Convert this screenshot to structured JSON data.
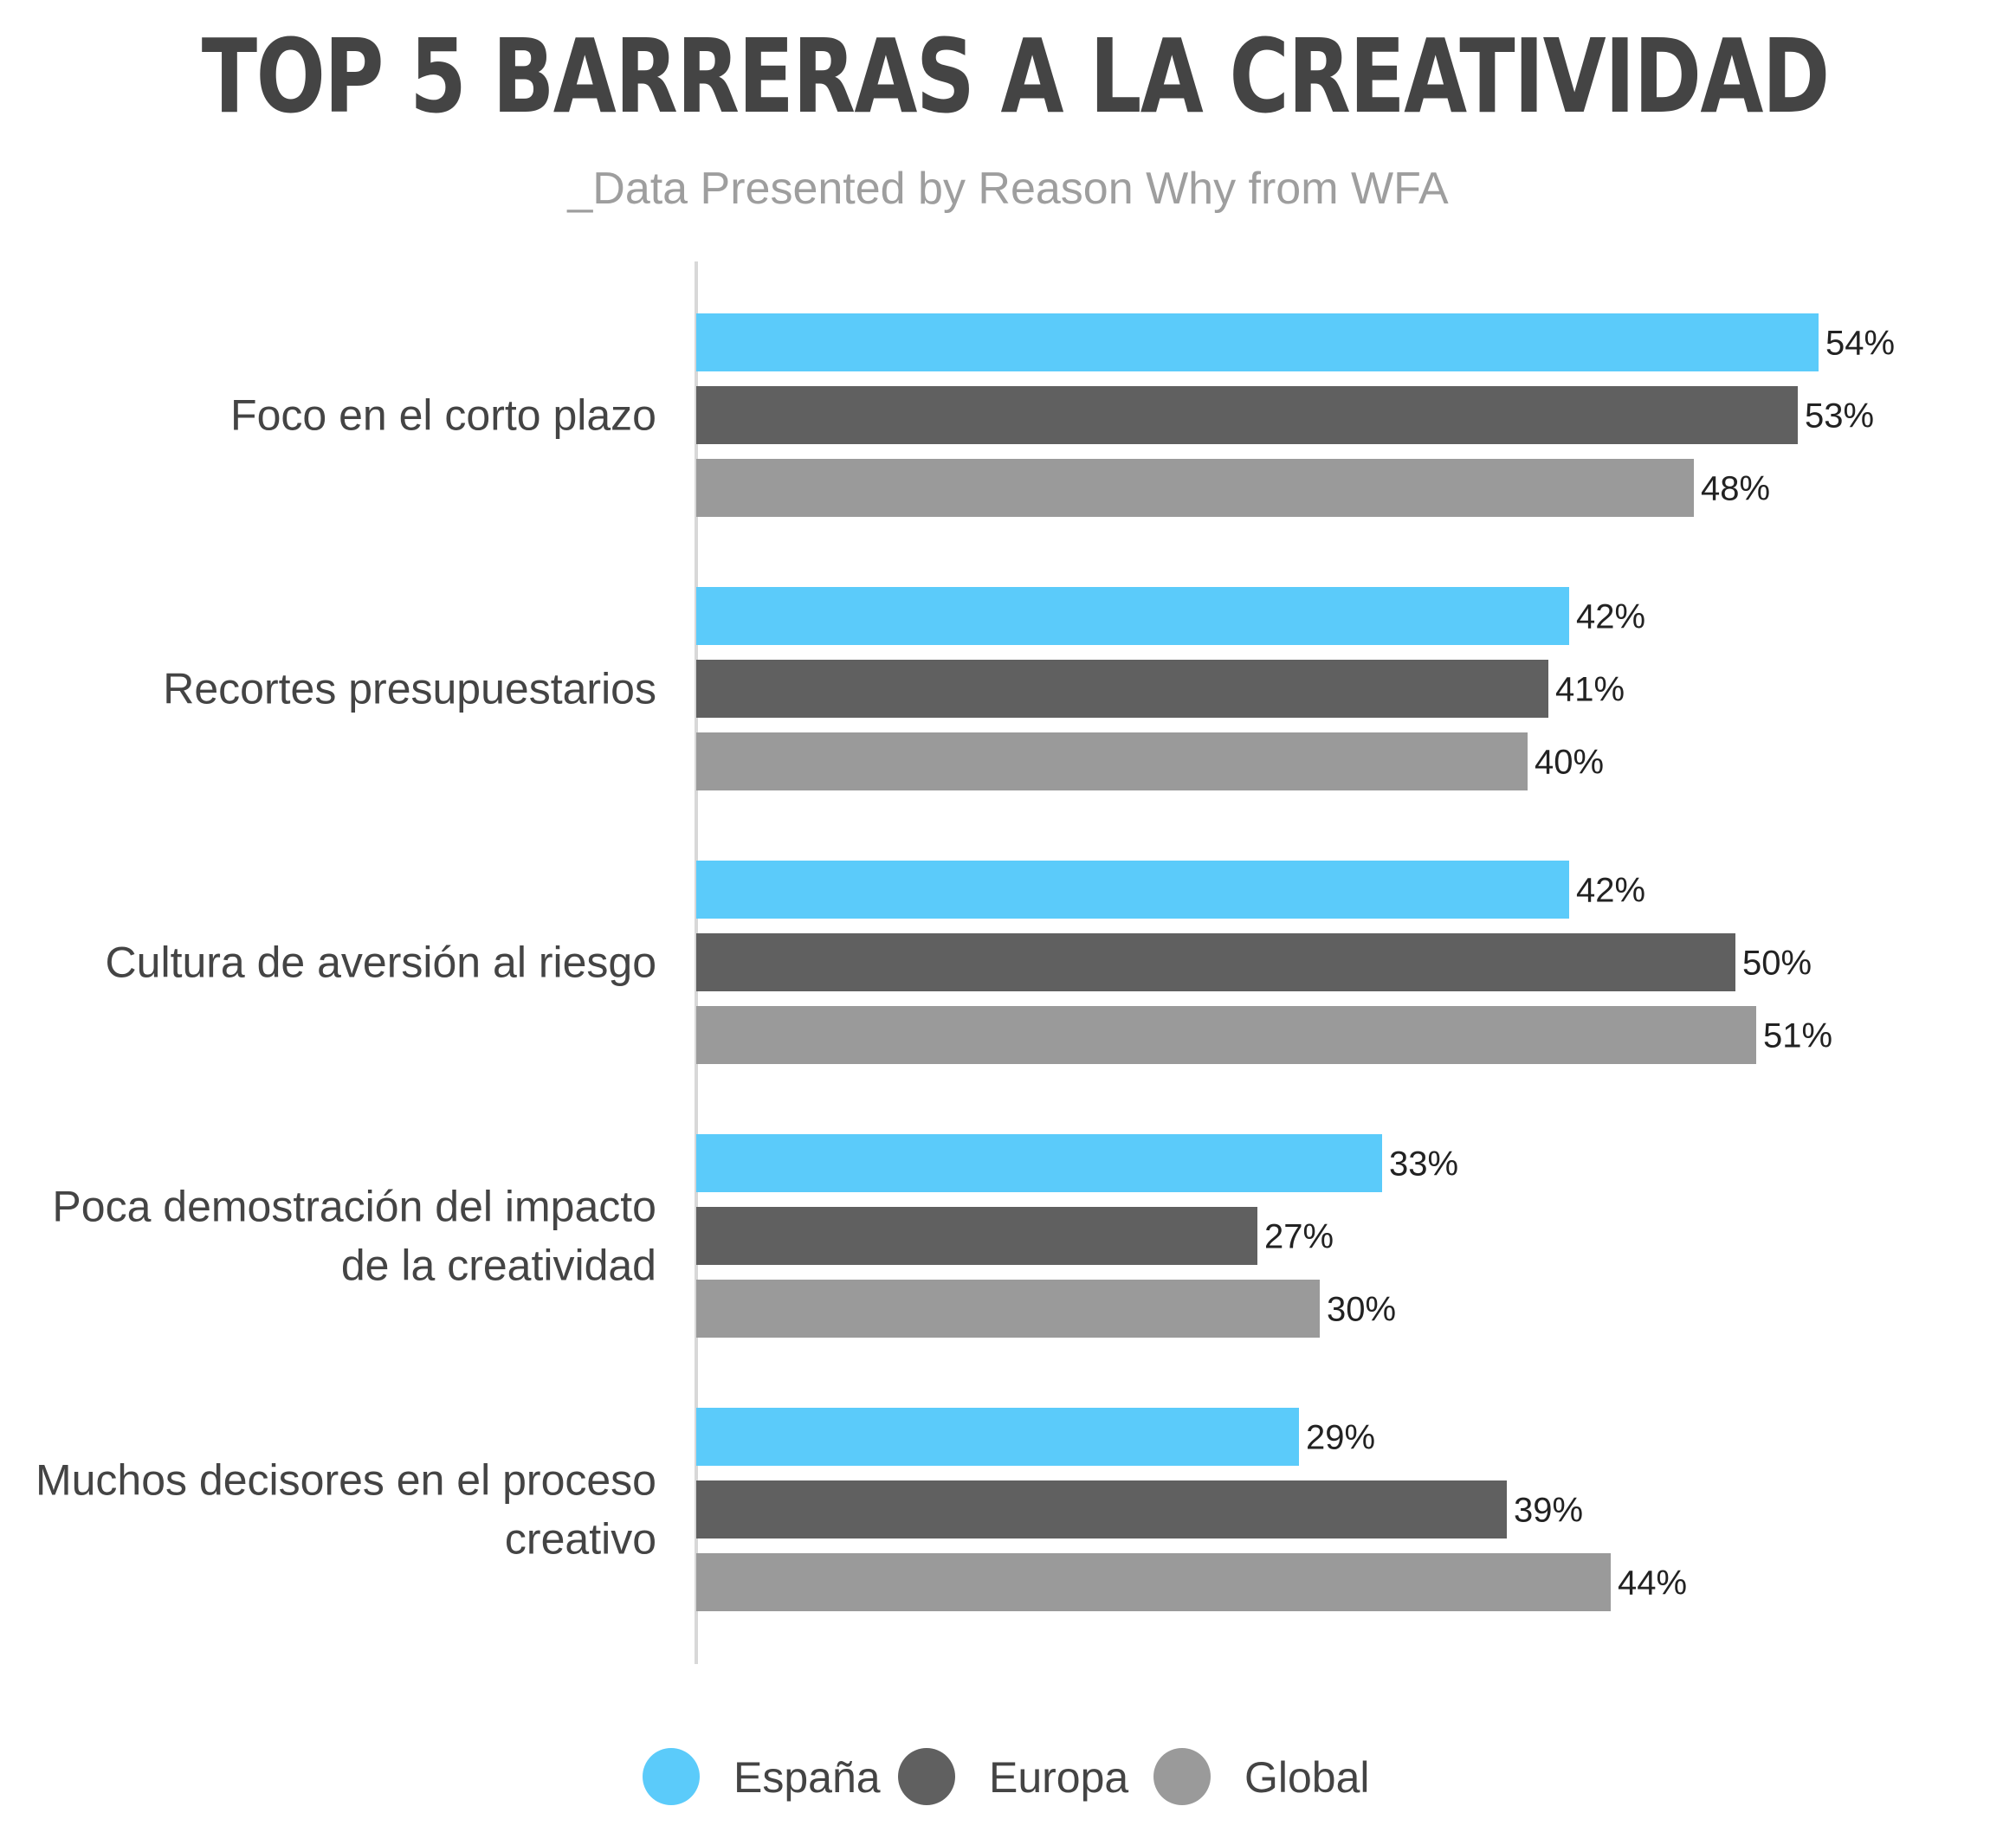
{
  "chart_data": {
    "type": "bar",
    "orientation": "horizontal",
    "title": "TOP 5 BARRERAS A LA CREATIVIDAD",
    "subtitle": "_Data Presented by Reason Why from WFA",
    "categories": [
      [
        "Foco en el corto plazo"
      ],
      [
        "Recortes presupuestarios"
      ],
      [
        "Cultura de aversión al riesgo"
      ],
      [
        "Poca demostración del impacto",
        "de la creatividad"
      ],
      [
        "Muchos decisores en el proceso",
        "creativo"
      ]
    ],
    "series": [
      {
        "name": "España",
        "color": "#5bcbfa",
        "values": [
          54,
          42,
          42,
          33,
          29
        ],
        "labels": [
          "54%",
          "42%",
          "42%",
          "33%",
          "29%"
        ]
      },
      {
        "name": "Europa",
        "color": "#606060",
        "values": [
          53,
          41,
          50,
          27,
          39
        ],
        "labels": [
          "53%",
          "41%",
          "50%",
          "27%",
          "39%"
        ]
      },
      {
        "name": "Global",
        "color": "#9a9a9a",
        "values": [
          48,
          40,
          51,
          30,
          44
        ],
        "labels": [
          "48%",
          "40%",
          "51%",
          "30%",
          "44%"
        ]
      }
    ],
    "xlim": [
      0,
      54
    ],
    "unit": "%",
    "grid": false,
    "legend_position": "bottom-center",
    "axis_color": "#d8d8d8"
  }
}
